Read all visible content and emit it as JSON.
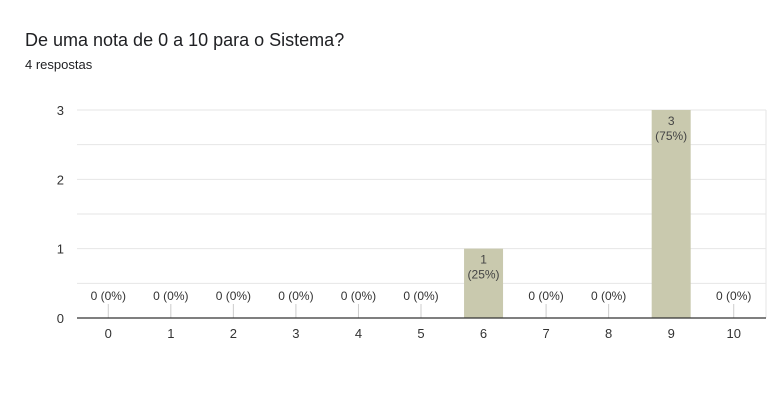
{
  "question": {
    "title": "De uma nota de 0 a 10 para o Sistema?",
    "response_count": "4 respostas"
  },
  "colors": {
    "bar": "#c9c9ae",
    "bar_stroke": "#b4b496",
    "grid": "#e6e6e6",
    "baseline": "#333333",
    "text": "#333333",
    "inside_label": "#444444"
  },
  "chart_data": {
    "type": "bar",
    "title": "De uma nota de 0 a 10 para o Sistema?",
    "categories": [
      "0",
      "1",
      "2",
      "3",
      "4",
      "5",
      "6",
      "7",
      "8",
      "9",
      "10"
    ],
    "values": [
      0,
      0,
      0,
      0,
      0,
      0,
      1,
      0,
      0,
      3,
      0
    ],
    "data_labels": [
      "0 (0%)",
      "0 (0%)",
      "0 (0%)",
      "0 (0%)",
      "0 (0%)",
      "0 (0%)",
      "1 (25%)",
      "0 (0%)",
      "0 (0%)",
      "3 (75%)",
      "0 (0%)"
    ],
    "ylim": [
      0,
      3
    ],
    "yticks": [
      0,
      1,
      2,
      3
    ],
    "grid": true,
    "legend": "none"
  }
}
